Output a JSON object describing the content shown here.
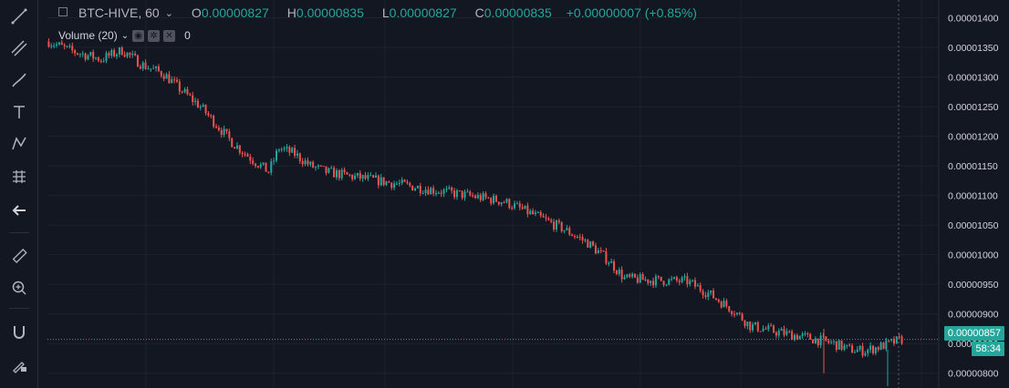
{
  "legend": {
    "symbol": "BTC-HIVE, 60",
    "open_label": "O",
    "open": "0.00000827",
    "high_label": "H",
    "high": "0.00000835",
    "low_label": "L",
    "low": "0.00000827",
    "close_label": "C",
    "close": "0.00000835",
    "change": "+0.00000007 (+0.85%)"
  },
  "volume_legend": {
    "label": "Volume (20)",
    "value": "0"
  },
  "toolbar": {
    "icons": [
      "trend-line-icon",
      "fib-icon",
      "brush-icon",
      "text-icon",
      "pattern-icon",
      "forecast-icon",
      "back-arrow-icon",
      "ruler-icon",
      "zoom-icon",
      "magnet-icon",
      "lock-draw-icon"
    ]
  },
  "price_axis": {
    "current_price": "0.00000857",
    "countdown": "58:34",
    "colors": {
      "up": "#26a69a",
      "down": "#ef5350",
      "bg": "#131722",
      "grid": "#1e222d"
    }
  },
  "chart_data": {
    "type": "candlestick",
    "title": "BTC-HIVE, 60",
    "xlabel": "",
    "ylabel": "",
    "ylim": [
      7.75e-06,
      1.43e-05
    ],
    "yticks": [
      "0.00000800",
      "0.00000850",
      "0.00000900",
      "0.00000950",
      "0.00001000",
      "0.00001050",
      "0.00001100",
      "0.00001150",
      "0.00001200",
      "0.00001250",
      "0.00001300",
      "0.00001350",
      "0.00001400"
    ],
    "grid": true,
    "current_price": 8.57e-06,
    "trend_points": [
      [
        0,
        1.36e-05
      ],
      [
        8,
        1.345e-05
      ],
      [
        20,
        1.33e-05
      ],
      [
        28,
        1.345e-05
      ],
      [
        36,
        1.32e-05
      ],
      [
        44,
        1.305e-05
      ],
      [
        50,
        1.28e-05
      ],
      [
        58,
        1.25e-05
      ],
      [
        64,
        1.22e-05
      ],
      [
        70,
        1.19e-05
      ],
      [
        78,
        1.16e-05
      ],
      [
        84,
        1.14e-05
      ],
      [
        88,
        1.18e-05
      ],
      [
        94,
        1.17e-05
      ],
      [
        100,
        1.15e-05
      ],
      [
        106,
        1.14e-05
      ],
      [
        116,
        1.132e-05
      ],
      [
        130,
        1.122e-05
      ],
      [
        146,
        1.11e-05
      ],
      [
        160,
        1.1e-05
      ],
      [
        174,
        1.09e-05
      ],
      [
        184,
        1.07e-05
      ],
      [
        196,
        1.045e-05
      ],
      [
        206,
        1.02e-05
      ],
      [
        214,
        9.9e-06
      ],
      [
        220,
        9.6e-06
      ],
      [
        230,
        9.57e-06
      ],
      [
        244,
        9.55e-06
      ],
      [
        252,
        9.35e-06
      ],
      [
        262,
        9.05e-06
      ],
      [
        268,
        8.8e-06
      ],
      [
        278,
        8.7e-06
      ],
      [
        290,
        8.6e-06
      ],
      [
        300,
        8.5e-06
      ],
      [
        306,
        8.4e-06
      ],
      [
        312,
        8.38e-06
      ],
      [
        320,
        8.48e-06
      ],
      [
        326,
        8.57e-06
      ]
    ],
    "candle_count": 327
  }
}
